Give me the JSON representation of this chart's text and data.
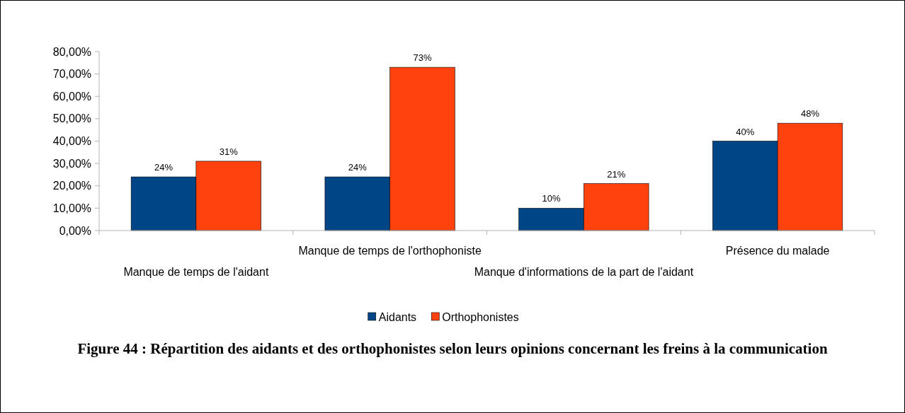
{
  "chart_data": {
    "type": "bar",
    "title": "Figure 44 : Répartition des aidants et des orthophonistes selon leurs opinions concernant les freins à la communication",
    "categories": [
      "Manque de temps de l'aidant",
      "Manque de temps de l'orthophoniste",
      "Manque d'informations de la part de l'aidant",
      "Présence du malade"
    ],
    "series": [
      {
        "name": "Aidants",
        "color": "#004586",
        "values": [
          24,
          24,
          10,
          40
        ],
        "value_labels": [
          "24%",
          "24%",
          "10%",
          "40%"
        ]
      },
      {
        "name": "Orthophonistes",
        "color": "#ff420e",
        "values": [
          31,
          73,
          21,
          48
        ],
        "value_labels": [
          "31%",
          "73%",
          "21%",
          "48%"
        ]
      }
    ],
    "ylim": [
      0,
      80
    ],
    "yticks": [
      {
        "value": 0,
        "label": "0,00%"
      },
      {
        "value": 10,
        "label": "10,00%"
      },
      {
        "value": 20,
        "label": "20,00%"
      },
      {
        "value": 30,
        "label": "30,00%"
      },
      {
        "value": 40,
        "label": "40,00%"
      },
      {
        "value": 50,
        "label": "50,00%"
      },
      {
        "value": 60,
        "label": "60,00%"
      },
      {
        "value": 70,
        "label": "70,00%"
      },
      {
        "value": 80,
        "label": "80,00%"
      }
    ],
    "legend": "bottom",
    "grid": false
  }
}
